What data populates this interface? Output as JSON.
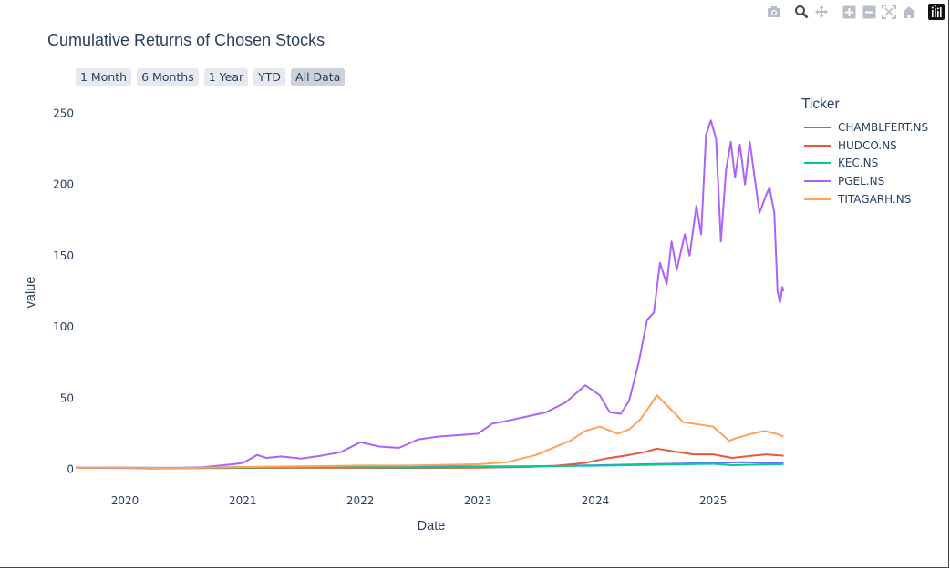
{
  "modebar": {
    "icons": [
      "camera-icon",
      "zoom-icon",
      "pan-icon",
      "zoom-in-icon",
      "zoom-out-icon",
      "autoscale-icon",
      "reset-axes-icon",
      "plotly-logo-icon"
    ]
  },
  "range_buttons": [
    {
      "label": "1 Month",
      "active": false
    },
    {
      "label": "6 Months",
      "active": false
    },
    {
      "label": "1 Year",
      "active": false
    },
    {
      "label": "YTD",
      "active": false
    },
    {
      "label": "All Data",
      "active": true
    }
  ],
  "colors": {
    "CHAMBLFERT.NS": "#636efa",
    "HUDCO.NS": "#EF553B",
    "KEC.NS": "#00cc96",
    "PGEL.NS": "#ab63fa",
    "TITAGARH.NS": "#FFA15A"
  },
  "chart_data": {
    "type": "line",
    "title": "Cumulative Returns of Chosen Stocks",
    "xlabel": "Date",
    "ylabel": "value",
    "legend_title": "Ticker",
    "legend_position": "right",
    "grid": false,
    "xlim": [
      "2019-08-01",
      "2025-08-15"
    ],
    "ylim": [
      -8,
      258
    ],
    "x_ticks": [
      "2020",
      "2021",
      "2022",
      "2023",
      "2024",
      "2025"
    ],
    "y_ticks": [
      0,
      50,
      100,
      150,
      200,
      250
    ],
    "series": [
      {
        "name": "CHAMBLFERT.NS",
        "points": [
          [
            "2019-08-01",
            1
          ],
          [
            "2020-01-01",
            1.1
          ],
          [
            "2020-06-01",
            1.0
          ],
          [
            "2021-01-01",
            1.5
          ],
          [
            "2021-06-01",
            1.8
          ],
          [
            "2022-01-01",
            2.0
          ],
          [
            "2022-06-01",
            2.2
          ],
          [
            "2023-01-01",
            2.0
          ],
          [
            "2023-06-01",
            2.1
          ],
          [
            "2024-01-01",
            2.8
          ],
          [
            "2024-06-01",
            3.5
          ],
          [
            "2024-10-01",
            4.0
          ],
          [
            "2025-01-01",
            4.5
          ],
          [
            "2025-04-01",
            5.0
          ],
          [
            "2025-06-01",
            4.6
          ],
          [
            "2025-08-08",
            4.4
          ]
        ]
      },
      {
        "name": "HUDCO.NS",
        "points": [
          [
            "2019-08-01",
            1
          ],
          [
            "2020-01-01",
            0.9
          ],
          [
            "2020-06-01",
            0.7
          ],
          [
            "2021-01-01",
            0.9
          ],
          [
            "2021-06-01",
            1.0
          ],
          [
            "2022-01-01",
            1.0
          ],
          [
            "2022-06-01",
            0.9
          ],
          [
            "2023-01-01",
            1.1
          ],
          [
            "2023-06-01",
            1.6
          ],
          [
            "2023-09-01",
            2.5
          ],
          [
            "2023-12-01",
            4.5
          ],
          [
            "2024-02-01",
            7.5
          ],
          [
            "2024-04-01",
            9.5
          ],
          [
            "2024-06-01",
            12
          ],
          [
            "2024-07-10",
            14.5
          ],
          [
            "2024-09-01",
            12.5
          ],
          [
            "2024-11-01",
            10.5
          ],
          [
            "2025-01-01",
            10.5
          ],
          [
            "2025-03-01",
            8.0
          ],
          [
            "2025-05-01",
            9.5
          ],
          [
            "2025-06-15",
            10.5
          ],
          [
            "2025-08-08",
            9.5
          ]
        ]
      },
      {
        "name": "KEC.NS",
        "points": [
          [
            "2019-08-01",
            1
          ],
          [
            "2020-01-01",
            1.1
          ],
          [
            "2020-06-01",
            0.9
          ],
          [
            "2021-01-01",
            1.3
          ],
          [
            "2021-06-01",
            1.4
          ],
          [
            "2022-01-01",
            1.5
          ],
          [
            "2022-06-01",
            1.3
          ],
          [
            "2023-01-01",
            1.6
          ],
          [
            "2023-06-01",
            2.0
          ],
          [
            "2024-01-01",
            2.5
          ],
          [
            "2024-06-01",
            3.0
          ],
          [
            "2024-10-01",
            3.5
          ],
          [
            "2025-01-01",
            3.8
          ],
          [
            "2025-03-01",
            2.9
          ],
          [
            "2025-06-01",
            3.4
          ],
          [
            "2025-08-08",
            3.6
          ]
        ]
      },
      {
        "name": "PGEL.NS",
        "points": [
          [
            "2019-08-01",
            1
          ],
          [
            "2020-01-01",
            1.0
          ],
          [
            "2020-03-25",
            0.6
          ],
          [
            "2020-06-01",
            0.8
          ],
          [
            "2020-09-01",
            1.5
          ],
          [
            "2020-12-01",
            3.5
          ],
          [
            "2021-01-01",
            4.5
          ],
          [
            "2021-02-15",
            10
          ],
          [
            "2021-03-15",
            8
          ],
          [
            "2021-05-01",
            9
          ],
          [
            "2021-07-01",
            7.5
          ],
          [
            "2021-09-01",
            9.5
          ],
          [
            "2021-11-01",
            12
          ],
          [
            "2022-01-01",
            19
          ],
          [
            "2022-03-01",
            16
          ],
          [
            "2022-05-01",
            15
          ],
          [
            "2022-07-01",
            21
          ],
          [
            "2022-09-01",
            23
          ],
          [
            "2022-11-01",
            24
          ],
          [
            "2023-01-01",
            25
          ],
          [
            "2023-02-15",
            32
          ],
          [
            "2023-04-01",
            34
          ],
          [
            "2023-06-01",
            37
          ],
          [
            "2023-08-01",
            40
          ],
          [
            "2023-10-01",
            47
          ],
          [
            "2023-12-01",
            59
          ],
          [
            "2024-01-15",
            52
          ],
          [
            "2024-02-15",
            40
          ],
          [
            "2024-03-20",
            39
          ],
          [
            "2024-04-15",
            48
          ],
          [
            "2024-05-15",
            75
          ],
          [
            "2024-06-10",
            105
          ],
          [
            "2024-07-01",
            110
          ],
          [
            "2024-07-20",
            145
          ],
          [
            "2024-08-10",
            130
          ],
          [
            "2024-08-25",
            160
          ],
          [
            "2024-09-10",
            140
          ],
          [
            "2024-10-05",
            165
          ],
          [
            "2024-10-20",
            150
          ],
          [
            "2024-11-10",
            185
          ],
          [
            "2024-11-25",
            165
          ],
          [
            "2024-12-10",
            235
          ],
          [
            "2024-12-25",
            245
          ],
          [
            "2025-01-10",
            232
          ],
          [
            "2025-01-25",
            160
          ],
          [
            "2025-02-10",
            210
          ],
          [
            "2025-02-25",
            230
          ],
          [
            "2025-03-10",
            205
          ],
          [
            "2025-03-25",
            228
          ],
          [
            "2025-04-10",
            200
          ],
          [
            "2025-04-25",
            230
          ],
          [
            "2025-05-10",
            205
          ],
          [
            "2025-05-25",
            180
          ],
          [
            "2025-06-10",
            190
          ],
          [
            "2025-06-25",
            198
          ],
          [
            "2025-07-10",
            180
          ],
          [
            "2025-07-20",
            125
          ],
          [
            "2025-07-28",
            117
          ],
          [
            "2025-08-04",
            128
          ],
          [
            "2025-08-08",
            125
          ]
        ]
      },
      {
        "name": "TITAGARH.NS",
        "points": [
          [
            "2019-08-01",
            1
          ],
          [
            "2020-01-01",
            1.2
          ],
          [
            "2020-06-01",
            0.8
          ],
          [
            "2021-01-01",
            1.6
          ],
          [
            "2021-06-01",
            2.0
          ],
          [
            "2022-01-01",
            2.6
          ],
          [
            "2022-06-01",
            2.6
          ],
          [
            "2023-01-01",
            3.5
          ],
          [
            "2023-04-01",
            5
          ],
          [
            "2023-07-01",
            10
          ],
          [
            "2023-09-01",
            16
          ],
          [
            "2023-10-15",
            20
          ],
          [
            "2023-12-01",
            27
          ],
          [
            "2024-01-15",
            30
          ],
          [
            "2024-03-10",
            25
          ],
          [
            "2024-04-15",
            28
          ],
          [
            "2024-05-20",
            35
          ],
          [
            "2024-06-20",
            45
          ],
          [
            "2024-07-10",
            52
          ],
          [
            "2024-08-01",
            47
          ],
          [
            "2024-09-01",
            40
          ],
          [
            "2024-10-01",
            33
          ],
          [
            "2024-11-01",
            32
          ],
          [
            "2025-01-01",
            30
          ],
          [
            "2025-02-20",
            20
          ],
          [
            "2025-03-15",
            22
          ],
          [
            "2025-05-01",
            25
          ],
          [
            "2025-06-10",
            27
          ],
          [
            "2025-07-15",
            25
          ],
          [
            "2025-08-08",
            23
          ]
        ]
      }
    ]
  }
}
